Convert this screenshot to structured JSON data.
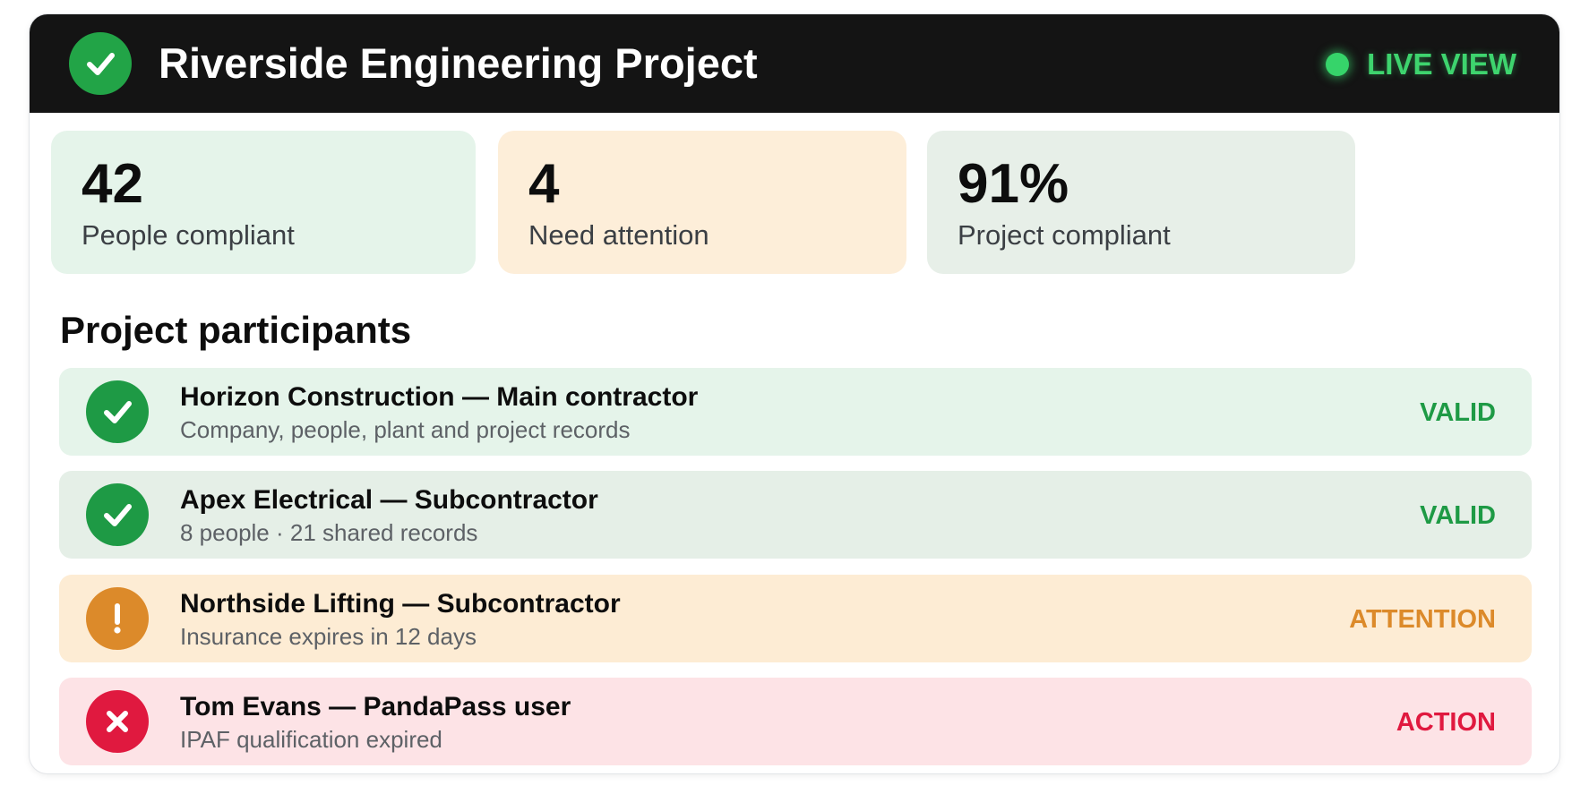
{
  "header": {
    "title": "Riverside Engineering Project",
    "live_label": "LIVE VIEW",
    "icon": "check-circle-icon"
  },
  "stats": [
    {
      "value": "42",
      "label": "People compliant"
    },
    {
      "value": "4",
      "label": "Need attention"
    },
    {
      "value": "91%",
      "label": "Project compliant"
    }
  ],
  "section": {
    "title": "Project participants"
  },
  "participants": [
    {
      "title": "Horizon Construction — Main contractor",
      "subtitle": "Company, people, plant and project records",
      "status": "VALID",
      "icon": "check-circle-icon"
    },
    {
      "title": "Apex Electrical — Subcontractor",
      "subtitle": "8 people · 21 shared records",
      "status": "VALID",
      "icon": "check-circle-icon"
    },
    {
      "title": "Northside Lifting — Subcontractor",
      "subtitle": "Insurance expires in 12 days",
      "status": "ATTENTION",
      "icon": "exclamation-circle-icon"
    },
    {
      "title": "Tom Evans — PandaPass user",
      "subtitle": "IPAF qualification expired",
      "status": "ACTION",
      "icon": "x-circle-icon"
    }
  ],
  "colors": {
    "header_bg": "#141414",
    "valid": "#1e9a45",
    "attention": "#dc8a2a",
    "action": "#e0193f",
    "live": "#3ed46e",
    "stat_green_bg": "#e5f4ea",
    "stat_orange_bg": "#fdeed9",
    "stat_gray_bg": "#e7efe8",
    "row_valid_bg": "#e5f4ea",
    "row_valid2_bg": "#e5efe7",
    "row_attention_bg": "#fdecd4",
    "row_action_bg": "#fde3e6"
  }
}
